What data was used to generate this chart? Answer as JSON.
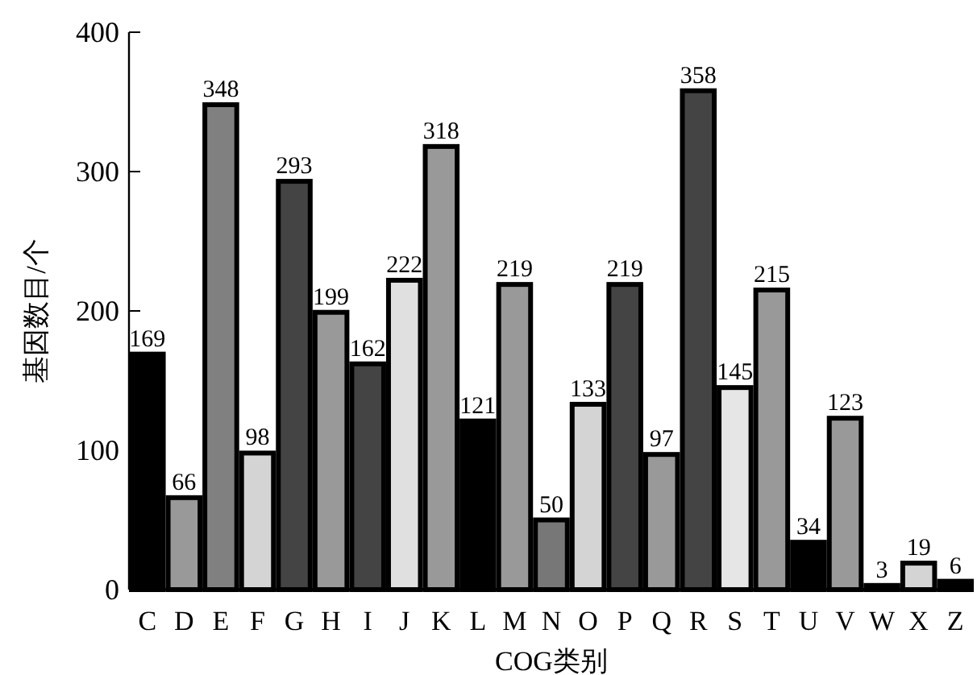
{
  "chart_data": {
    "type": "bar",
    "xlabel": "COG类别",
    "ylabel": "基因数目/个",
    "categories": [
      "C",
      "D",
      "E",
      "F",
      "G",
      "H",
      "I",
      "J",
      "K",
      "L",
      "M",
      "N",
      "O",
      "P",
      "Q",
      "R",
      "S",
      "T",
      "U",
      "V",
      "W",
      "X",
      "Z"
    ],
    "values": [
      169,
      66,
      348,
      98,
      293,
      199,
      162,
      222,
      318,
      121,
      219,
      50,
      133,
      219,
      97,
      358,
      145,
      215,
      34,
      123,
      3,
      19,
      6
    ],
    "colors": [
      "#000000",
      "#999999",
      "#808080",
      "#d4d4d4",
      "#444444",
      "#999999",
      "#444444",
      "#e0e0e0",
      "#999999",
      "#000000",
      "#999999",
      "#777777",
      "#d4d4d4",
      "#444444",
      "#999999",
      "#444444",
      "#e6e6e6",
      "#999999",
      "#000000",
      "#999999",
      "#000000",
      "#d4d4d4",
      "#000000"
    ],
    "ylim": [
      0,
      400
    ],
    "yticks": [
      0,
      100,
      200,
      300,
      400
    ],
    "data_labels": true,
    "grid": false
  }
}
